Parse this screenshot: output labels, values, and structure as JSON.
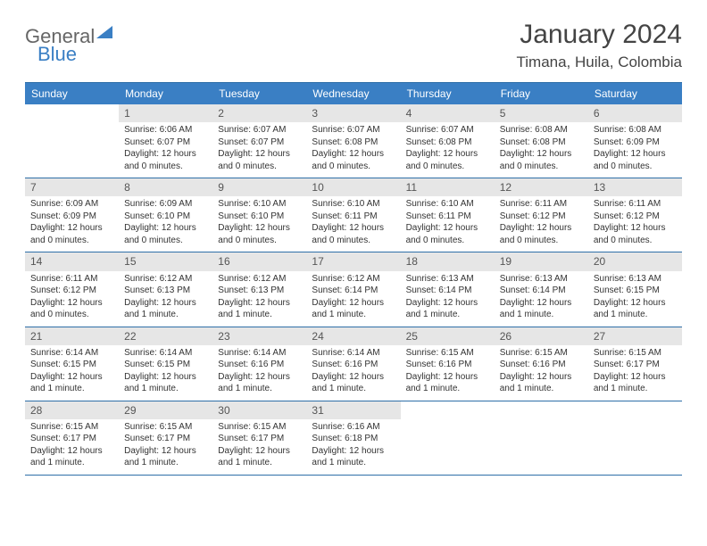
{
  "brand": {
    "part1": "General",
    "part2": "Blue"
  },
  "title": "January 2024",
  "location": "Timana, Huila, Colombia",
  "colors": {
    "header_bg": "#3a7fc4",
    "header_text": "#ffffff",
    "rule": "#2e6fa8",
    "daynum_bg": "#e6e6e6",
    "text": "#333333",
    "page_bg": "#ffffff"
  },
  "daysOfWeek": [
    "Sunday",
    "Monday",
    "Tuesday",
    "Wednesday",
    "Thursday",
    "Friday",
    "Saturday"
  ],
  "weeks": [
    [
      {
        "n": "",
        "sunrise": "",
        "sunset": "",
        "daylight": ""
      },
      {
        "n": "1",
        "sunrise": "Sunrise: 6:06 AM",
        "sunset": "Sunset: 6:07 PM",
        "daylight": "Daylight: 12 hours and 0 minutes."
      },
      {
        "n": "2",
        "sunrise": "Sunrise: 6:07 AM",
        "sunset": "Sunset: 6:07 PM",
        "daylight": "Daylight: 12 hours and 0 minutes."
      },
      {
        "n": "3",
        "sunrise": "Sunrise: 6:07 AM",
        "sunset": "Sunset: 6:08 PM",
        "daylight": "Daylight: 12 hours and 0 minutes."
      },
      {
        "n": "4",
        "sunrise": "Sunrise: 6:07 AM",
        "sunset": "Sunset: 6:08 PM",
        "daylight": "Daylight: 12 hours and 0 minutes."
      },
      {
        "n": "5",
        "sunrise": "Sunrise: 6:08 AM",
        "sunset": "Sunset: 6:08 PM",
        "daylight": "Daylight: 12 hours and 0 minutes."
      },
      {
        "n": "6",
        "sunrise": "Sunrise: 6:08 AM",
        "sunset": "Sunset: 6:09 PM",
        "daylight": "Daylight: 12 hours and 0 minutes."
      }
    ],
    [
      {
        "n": "7",
        "sunrise": "Sunrise: 6:09 AM",
        "sunset": "Sunset: 6:09 PM",
        "daylight": "Daylight: 12 hours and 0 minutes."
      },
      {
        "n": "8",
        "sunrise": "Sunrise: 6:09 AM",
        "sunset": "Sunset: 6:10 PM",
        "daylight": "Daylight: 12 hours and 0 minutes."
      },
      {
        "n": "9",
        "sunrise": "Sunrise: 6:10 AM",
        "sunset": "Sunset: 6:10 PM",
        "daylight": "Daylight: 12 hours and 0 minutes."
      },
      {
        "n": "10",
        "sunrise": "Sunrise: 6:10 AM",
        "sunset": "Sunset: 6:11 PM",
        "daylight": "Daylight: 12 hours and 0 minutes."
      },
      {
        "n": "11",
        "sunrise": "Sunrise: 6:10 AM",
        "sunset": "Sunset: 6:11 PM",
        "daylight": "Daylight: 12 hours and 0 minutes."
      },
      {
        "n": "12",
        "sunrise": "Sunrise: 6:11 AM",
        "sunset": "Sunset: 6:12 PM",
        "daylight": "Daylight: 12 hours and 0 minutes."
      },
      {
        "n": "13",
        "sunrise": "Sunrise: 6:11 AM",
        "sunset": "Sunset: 6:12 PM",
        "daylight": "Daylight: 12 hours and 0 minutes."
      }
    ],
    [
      {
        "n": "14",
        "sunrise": "Sunrise: 6:11 AM",
        "sunset": "Sunset: 6:12 PM",
        "daylight": "Daylight: 12 hours and 0 minutes."
      },
      {
        "n": "15",
        "sunrise": "Sunrise: 6:12 AM",
        "sunset": "Sunset: 6:13 PM",
        "daylight": "Daylight: 12 hours and 1 minute."
      },
      {
        "n": "16",
        "sunrise": "Sunrise: 6:12 AM",
        "sunset": "Sunset: 6:13 PM",
        "daylight": "Daylight: 12 hours and 1 minute."
      },
      {
        "n": "17",
        "sunrise": "Sunrise: 6:12 AM",
        "sunset": "Sunset: 6:14 PM",
        "daylight": "Daylight: 12 hours and 1 minute."
      },
      {
        "n": "18",
        "sunrise": "Sunrise: 6:13 AM",
        "sunset": "Sunset: 6:14 PM",
        "daylight": "Daylight: 12 hours and 1 minute."
      },
      {
        "n": "19",
        "sunrise": "Sunrise: 6:13 AM",
        "sunset": "Sunset: 6:14 PM",
        "daylight": "Daylight: 12 hours and 1 minute."
      },
      {
        "n": "20",
        "sunrise": "Sunrise: 6:13 AM",
        "sunset": "Sunset: 6:15 PM",
        "daylight": "Daylight: 12 hours and 1 minute."
      }
    ],
    [
      {
        "n": "21",
        "sunrise": "Sunrise: 6:14 AM",
        "sunset": "Sunset: 6:15 PM",
        "daylight": "Daylight: 12 hours and 1 minute."
      },
      {
        "n": "22",
        "sunrise": "Sunrise: 6:14 AM",
        "sunset": "Sunset: 6:15 PM",
        "daylight": "Daylight: 12 hours and 1 minute."
      },
      {
        "n": "23",
        "sunrise": "Sunrise: 6:14 AM",
        "sunset": "Sunset: 6:16 PM",
        "daylight": "Daylight: 12 hours and 1 minute."
      },
      {
        "n": "24",
        "sunrise": "Sunrise: 6:14 AM",
        "sunset": "Sunset: 6:16 PM",
        "daylight": "Daylight: 12 hours and 1 minute."
      },
      {
        "n": "25",
        "sunrise": "Sunrise: 6:15 AM",
        "sunset": "Sunset: 6:16 PM",
        "daylight": "Daylight: 12 hours and 1 minute."
      },
      {
        "n": "26",
        "sunrise": "Sunrise: 6:15 AM",
        "sunset": "Sunset: 6:16 PM",
        "daylight": "Daylight: 12 hours and 1 minute."
      },
      {
        "n": "27",
        "sunrise": "Sunrise: 6:15 AM",
        "sunset": "Sunset: 6:17 PM",
        "daylight": "Daylight: 12 hours and 1 minute."
      }
    ],
    [
      {
        "n": "28",
        "sunrise": "Sunrise: 6:15 AM",
        "sunset": "Sunset: 6:17 PM",
        "daylight": "Daylight: 12 hours and 1 minute."
      },
      {
        "n": "29",
        "sunrise": "Sunrise: 6:15 AM",
        "sunset": "Sunset: 6:17 PM",
        "daylight": "Daylight: 12 hours and 1 minute."
      },
      {
        "n": "30",
        "sunrise": "Sunrise: 6:15 AM",
        "sunset": "Sunset: 6:17 PM",
        "daylight": "Daylight: 12 hours and 1 minute."
      },
      {
        "n": "31",
        "sunrise": "Sunrise: 6:16 AM",
        "sunset": "Sunset: 6:18 PM",
        "daylight": "Daylight: 12 hours and 1 minute."
      },
      {
        "n": "",
        "sunrise": "",
        "sunset": "",
        "daylight": ""
      },
      {
        "n": "",
        "sunrise": "",
        "sunset": "",
        "daylight": ""
      },
      {
        "n": "",
        "sunrise": "",
        "sunset": "",
        "daylight": ""
      }
    ]
  ]
}
